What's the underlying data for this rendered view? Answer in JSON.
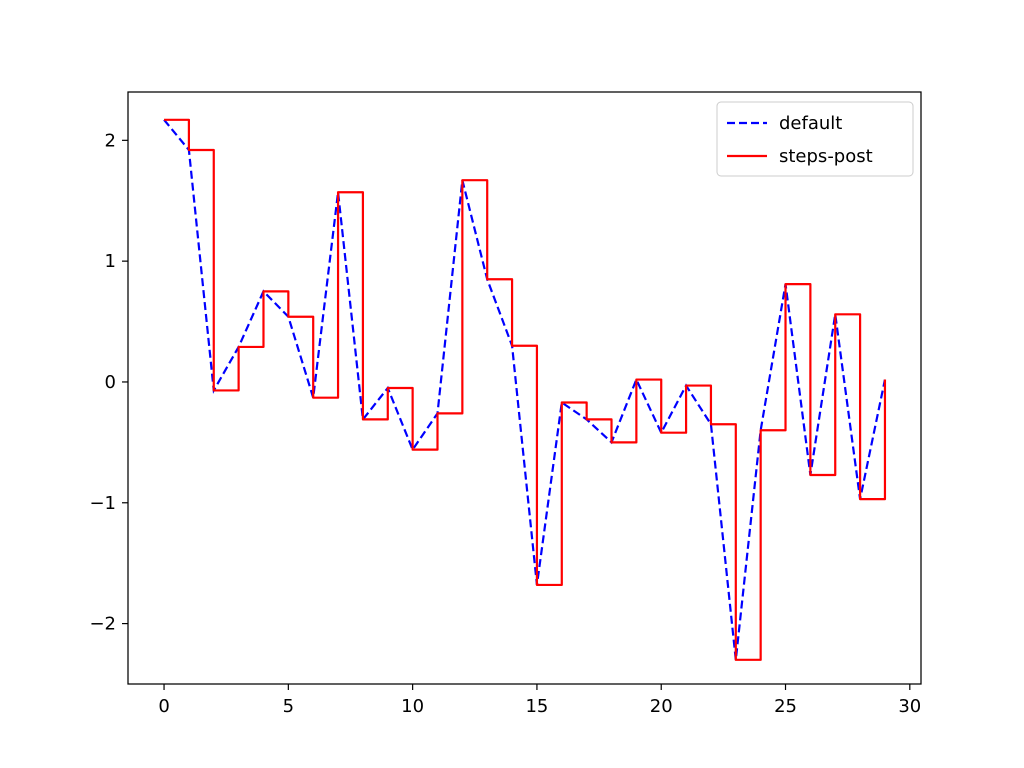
{
  "chart_data": {
    "type": "line",
    "title": "",
    "xlabel": "",
    "ylabel": "",
    "xlim": [
      -1.45,
      30.45
    ],
    "ylim": [
      -2.5,
      2.4
    ],
    "x_ticks": [
      0,
      5,
      10,
      15,
      20,
      25,
      30
    ],
    "x_tick_labels": [
      "0",
      "5",
      "10",
      "15",
      "20",
      "25",
      "30"
    ],
    "y_ticks": [
      -2,
      -1,
      0,
      1,
      2
    ],
    "y_tick_labels": [
      "−2",
      "−1",
      "0",
      "1",
      "2"
    ],
    "grid": false,
    "legend": "top-right",
    "x": [
      0,
      1,
      2,
      3,
      4,
      5,
      6,
      7,
      8,
      9,
      10,
      11,
      12,
      13,
      14,
      15,
      16,
      17,
      18,
      19,
      20,
      21,
      22,
      23,
      24,
      25,
      26,
      27,
      28,
      29
    ],
    "series": [
      {
        "name": "default",
        "drawstyle": "default",
        "linestyle": "dashed",
        "color": "#0000ff",
        "values": [
          2.17,
          1.92,
          -0.07,
          0.29,
          0.75,
          0.54,
          -0.13,
          1.57,
          -0.31,
          -0.05,
          -0.56,
          -0.26,
          1.67,
          0.85,
          0.3,
          -1.68,
          -0.17,
          -0.31,
          -0.5,
          0.02,
          -0.42,
          -0.03,
          -0.35,
          -2.3,
          -0.4,
          0.81,
          -0.77,
          0.56,
          -0.97,
          0.02
        ]
      },
      {
        "name": "steps-post",
        "drawstyle": "steps-post",
        "linestyle": "solid",
        "color": "#ff0000",
        "values": [
          2.17,
          1.92,
          -0.07,
          0.29,
          0.75,
          0.54,
          -0.13,
          1.57,
          -0.31,
          -0.05,
          -0.56,
          -0.26,
          1.67,
          0.85,
          0.3,
          -1.68,
          -0.17,
          -0.31,
          -0.5,
          0.02,
          -0.42,
          -0.03,
          -0.35,
          -2.3,
          -0.4,
          0.81,
          -0.77,
          0.56,
          -0.97,
          0.02
        ]
      }
    ]
  }
}
